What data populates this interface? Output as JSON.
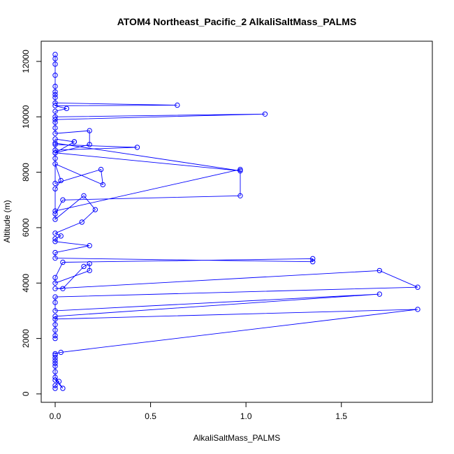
{
  "chart_data": {
    "type": "line",
    "title": "ATOM4 Northeast_Pacific_2 AlkaliSaltMass_PALMS",
    "xlabel": "AlkaliSaltMass_PALMS",
    "ylabel": "Altitude (m)",
    "xlim": [
      0,
      1.9
    ],
    "ylim": [
      200,
      12250
    ],
    "x_ticks": [
      0,
      0.5,
      1,
      1.5
    ],
    "x_tick_labels": [
      "0.0",
      "0.5",
      "1.0",
      "1.5"
    ],
    "y_ticks": [
      0,
      2000,
      4000,
      6000,
      8000,
      10000,
      12000
    ],
    "y_tick_labels": [
      "0",
      "2000",
      "4000",
      "6000",
      "8000",
      "10000",
      "12000"
    ],
    "grid": false,
    "color": "#0000ff",
    "series": [
      {
        "x": [
          0.0,
          0.0,
          0.02,
          0.0,
          0.04,
          0.0,
          0.0,
          0.0,
          0.0,
          0.0,
          0.0,
          0.0,
          0.0,
          0.03,
          1.9,
          0.0,
          0.0,
          0.0,
          0.0,
          0.0,
          0.0,
          1.7,
          0.0,
          0.0,
          0.0,
          1.9,
          1.7,
          0.0,
          0.04,
          0.15,
          0.18,
          0.18,
          0.0,
          0.0,
          0.04,
          1.35,
          1.35,
          0.0,
          0.0,
          0.18,
          0.0,
          0.0,
          0.03,
          0.0,
          0.14,
          0.21,
          0.15,
          0.0,
          0.0,
          0.04,
          0.97,
          0.97,
          0.0,
          0.0,
          0.03,
          0.0,
          0.25,
          0.24,
          0.0,
          0.0,
          0.0,
          0.97,
          0.0,
          0.0,
          0.43,
          0.0,
          0.0,
          0.1,
          0.1,
          0.0,
          0.18,
          0.18,
          0.0,
          0.0,
          0.0,
          0.0,
          1.1,
          0.0,
          0.0,
          0.06,
          0.0,
          0.64,
          0.0,
          0.0,
          0.0,
          0.0,
          0.0,
          0.0,
          0.0,
          0.0,
          0.0
        ],
        "y": [
          200,
          300,
          450,
          500,
          200,
          600,
          800,
          1000,
          1100,
          1200,
          1300,
          1400,
          1450,
          1500,
          3050,
          2700,
          2500,
          2300,
          2100,
          2000,
          2800,
          3600,
          3000,
          3300,
          3500,
          3850,
          4450,
          3800,
          3800,
          4600,
          4700,
          4450,
          4000,
          4200,
          4750,
          4880,
          4770,
          4900,
          5100,
          5350,
          5500,
          5600,
          5700,
          5800,
          6200,
          6650,
          7150,
          6300,
          6500,
          7000,
          7150,
          8100,
          6600,
          7400,
          7700,
          8300,
          7550,
          8100,
          7600,
          8500,
          8700,
          8050,
          9050,
          8800,
          8900,
          9000,
          9200,
          9100,
          9100,
          8700,
          9000,
          9500,
          9400,
          9600,
          9800,
          9900,
          10100,
          10000,
          10200,
          10300,
          10400,
          10420,
          10500,
          10700,
          10800,
          10900,
          11100,
          11500,
          11900,
          12100,
          12250
        ]
      }
    ]
  }
}
